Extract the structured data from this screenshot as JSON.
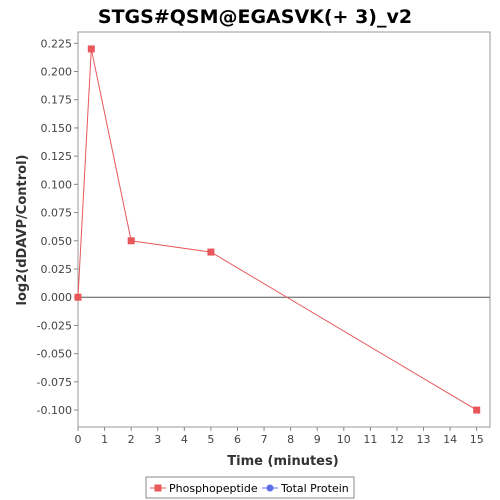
{
  "chart_data": {
    "type": "line",
    "title": "STGS#QSM@EGASVK(+ 3)_v2",
    "xlabel": "Time (minutes)",
    "ylabel": "log2(dDAVP/Control)",
    "xlim": [
      0,
      15.5
    ],
    "ylim": [
      -0.115,
      0.235
    ],
    "x_ticks": [
      0,
      1,
      2,
      3,
      4,
      5,
      6,
      7,
      8,
      9,
      10,
      11,
      12,
      13,
      14,
      15
    ],
    "y_ticks": [
      -0.1,
      -0.075,
      -0.05,
      -0.025,
      0.0,
      0.025,
      0.05,
      0.075,
      0.1,
      0.125,
      0.15,
      0.175,
      0.2,
      0.225
    ],
    "y_tick_labels": [
      "-0.100",
      "-0.075",
      "-0.050",
      "-0.025",
      "0.000",
      "0.025",
      "0.050",
      "0.075",
      "0.100",
      "0.125",
      "0.150",
      "0.175",
      "0.200",
      "0.225"
    ],
    "zero_line": true,
    "grid": false,
    "legend_position": "bottom-center",
    "series": [
      {
        "name": "Phosphopeptide",
        "color": "#e8585a",
        "marker": "square",
        "x": [
          0,
          0.5,
          2,
          5,
          15
        ],
        "y": [
          0.0,
          0.22,
          0.05,
          0.04,
          -0.1
        ]
      },
      {
        "name": "Total Protein",
        "color": "#5b6ee8",
        "marker": "circle",
        "x": [],
        "y": []
      }
    ]
  }
}
